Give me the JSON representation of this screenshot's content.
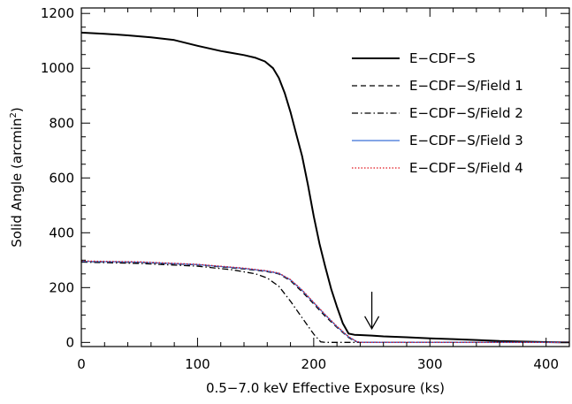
{
  "chart_data": {
    "type": "line",
    "xlabel": "0.5−7.0 keV Effective Exposure (ks)",
    "ylabel": {
      "main": "Solid Angle (arcmin",
      "sup": "2",
      "end": ")"
    },
    "xlim": [
      0,
      420
    ],
    "ylim": [
      -15,
      1220
    ],
    "x_ticks": [
      0,
      100,
      200,
      300,
      400
    ],
    "x_tick_labels": [
      "0",
      "100",
      "200",
      "300",
      "400"
    ],
    "y_ticks": [
      0,
      200,
      400,
      600,
      800,
      1000,
      1200
    ],
    "y_tick_labels": [
      "0",
      "200",
      "400",
      "600",
      "800",
      "1000",
      "1200"
    ],
    "x_minor_step": 20,
    "y_minor_step": 50,
    "grid": false,
    "legend_position": "upper-right",
    "arrow": {
      "x": 250,
      "y_tip": 50,
      "y_tail": 185
    },
    "series": [
      {
        "name": "E−CDF−S",
        "color": "#000000",
        "dash": "solid",
        "x": [
          0,
          20,
          40,
          60,
          80,
          100,
          120,
          140,
          150,
          158,
          165,
          170,
          175,
          180,
          185,
          190,
          195,
          200,
          205,
          210,
          215,
          220,
          225,
          230,
          235,
          240,
          250,
          260,
          280,
          300,
          320,
          340,
          360,
          380,
          400,
          420
        ],
        "y": [
          1130,
          1126,
          1120,
          1113,
          1103,
          1082,
          1063,
          1048,
          1038,
          1025,
          1000,
          965,
          910,
          840,
          760,
          680,
          575,
          460,
          360,
          275,
          195,
          130,
          70,
          32,
          28,
          27,
          25,
          22,
          19,
          15,
          12,
          9,
          5,
          3,
          1,
          0
        ]
      },
      {
        "name": "E−CDF−S/Field 1",
        "color": "#000000",
        "dash": "dashed",
        "x": [
          0,
          50,
          100,
          140,
          160,
          170,
          180,
          190,
          200,
          210,
          220,
          230,
          236,
          240,
          260,
          300,
          350,
          400,
          420
        ],
        "y": [
          295,
          292,
          283,
          268,
          258,
          250,
          225,
          185,
          140,
          95,
          55,
          18,
          3,
          0,
          0,
          0,
          0,
          0,
          0
        ]
      },
      {
        "name": "E−CDF−S/Field 2",
        "color": "#000000",
        "dash": "dashdot",
        "x": [
          0,
          50,
          100,
          130,
          150,
          160,
          170,
          180,
          190,
          200,
          206,
          210,
          250,
          300,
          350,
          400,
          420
        ],
        "y": [
          293,
          288,
          278,
          265,
          250,
          235,
          205,
          150,
          90,
          30,
          2,
          0,
          0,
          0,
          0,
          0,
          0
        ]
      },
      {
        "name": "E−CDF−S/Field 3",
        "color": "#3a6fd8",
        "dash": "solid",
        "x": [
          0,
          50,
          100,
          140,
          160,
          170,
          180,
          190,
          200,
          210,
          220,
          230,
          237,
          240,
          260,
          300,
          350,
          400,
          420
        ],
        "y": [
          296,
          293,
          284,
          270,
          260,
          252,
          228,
          190,
          145,
          100,
          58,
          20,
          3,
          0,
          0,
          0,
          0,
          0,
          0
        ]
      },
      {
        "name": "E−CDF−S/Field 4",
        "color": "#e0141e",
        "dash": "dotted",
        "x": [
          0,
          50,
          100,
          140,
          160,
          170,
          180,
          190,
          200,
          210,
          220,
          230,
          237,
          240,
          260,
          300,
          350,
          400,
          420
        ],
        "y": [
          297,
          294,
          285,
          271,
          261,
          253,
          229,
          191,
          146,
          101,
          59,
          21,
          3,
          0,
          0,
          0,
          0,
          0,
          0
        ]
      }
    ]
  }
}
